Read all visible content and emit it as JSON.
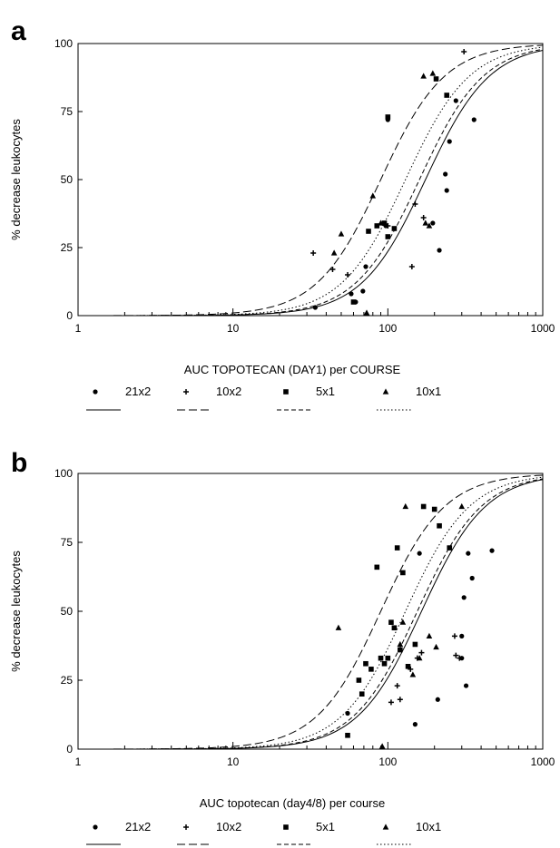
{
  "chart_data": [
    {
      "type": "scatter",
      "panel_label": "a",
      "xlabel": "AUC TOPOTECAN (DAY1) per COURSE",
      "ylabel": "% decrease leukocytes",
      "x_scale": "log",
      "xlim": [
        1,
        1000
      ],
      "ylim": [
        0,
        100
      ],
      "x_ticks": [
        "1",
        "10",
        "100",
        "1000"
      ],
      "y_ticks": [
        "0",
        "25",
        "50",
        "75",
        "100"
      ],
      "grid": false,
      "legend_position": "bottom",
      "series": [
        {
          "name": "21x2",
          "marker": "circle",
          "line_style": "solid",
          "ec50": 175,
          "points": [
            [
              34,
              3
            ],
            [
              58,
              8
            ],
            [
              62,
              5
            ],
            [
              69,
              9
            ],
            [
              72,
              18
            ],
            [
              97,
              33
            ],
            [
              100,
              72
            ],
            [
              195,
              34
            ],
            [
              215,
              24
            ],
            [
              235,
              52
            ],
            [
              240,
              46
            ],
            [
              250,
              64
            ],
            [
              275,
              79
            ],
            [
              360,
              72
            ]
          ]
        },
        {
          "name": "10x2",
          "marker": "plus",
          "line_style": "long-dash",
          "ec50": 90,
          "points": [
            [
              33,
              23
            ],
            [
              44,
              17
            ],
            [
              55,
              15
            ],
            [
              100,
              33
            ],
            [
              143,
              18
            ],
            [
              150,
              41
            ],
            [
              170,
              36
            ],
            [
              310,
              97
            ]
          ]
        },
        {
          "name": "5x1",
          "marker": "square",
          "line_style": "short-dash",
          "ec50": 160,
          "points": [
            [
              60,
              5
            ],
            [
              75,
              31
            ],
            [
              85,
              33
            ],
            [
              95,
              34
            ],
            [
              100,
              73
            ],
            [
              100,
              29
            ],
            [
              205,
              87
            ],
            [
              240,
              81
            ],
            [
              110,
              32
            ]
          ]
        },
        {
          "name": "10x1",
          "marker": "triangle",
          "line_style": "dotted",
          "ec50": 130,
          "points": [
            [
              45,
              23
            ],
            [
              50,
              30
            ],
            [
              73,
              1
            ],
            [
              80,
              44
            ],
            [
              90,
              34
            ],
            [
              170,
              88
            ],
            [
              195,
              89
            ],
            [
              185,
              33
            ],
            [
              175,
              34
            ]
          ]
        }
      ],
      "hill_slope": 2.1
    },
    {
      "type": "scatter",
      "panel_label": "b",
      "xlabel": "AUC topotecan (day4/8) per course",
      "ylabel": "% decrease leukocytes",
      "x_scale": "log",
      "xlim": [
        1,
        1000
      ],
      "ylim": [
        0,
        100
      ],
      "x_ticks": [
        "1",
        "10",
        "100",
        "1000"
      ],
      "y_ticks": [
        "0",
        "25",
        "50",
        "75",
        "100"
      ],
      "grid": false,
      "legend_position": "bottom",
      "series": [
        {
          "name": "21x2",
          "marker": "circle",
          "line_style": "solid",
          "ec50": 165,
          "points": [
            [
              55,
              13
            ],
            [
              150,
              9
            ],
            [
              160,
              71
            ],
            [
              210,
              18
            ],
            [
              300,
              41
            ],
            [
              300,
              33
            ],
            [
              310,
              55
            ],
            [
              320,
              23
            ],
            [
              330,
              71
            ],
            [
              350,
              62
            ],
            [
              470,
              72
            ]
          ]
        },
        {
          "name": "10x2",
          "marker": "plus",
          "line_style": "long-dash",
          "ec50": 90,
          "points": [
            [
              105,
              17
            ],
            [
              115,
              23
            ],
            [
              120,
              18
            ],
            [
              140,
              29
            ],
            [
              155,
              33
            ],
            [
              165,
              35
            ],
            [
              270,
              41
            ],
            [
              275,
              34
            ],
            [
              290,
              33
            ]
          ]
        },
        {
          "name": "5x1",
          "marker": "square",
          "line_style": "short-dash",
          "ec50": 155,
          "points": [
            [
              55,
              5
            ],
            [
              65,
              25
            ],
            [
              68,
              20
            ],
            [
              72,
              31
            ],
            [
              78,
              29
            ],
            [
              85,
              66
            ],
            [
              90,
              33
            ],
            [
              95,
              31
            ],
            [
              100,
              33
            ],
            [
              105,
              46
            ],
            [
              110,
              44
            ],
            [
              115,
              73
            ],
            [
              120,
              36
            ],
            [
              125,
              64
            ],
            [
              135,
              30
            ],
            [
              150,
              38
            ],
            [
              170,
              88
            ],
            [
              200,
              87
            ],
            [
              215,
              81
            ],
            [
              250,
              73
            ]
          ]
        },
        {
          "name": "10x1",
          "marker": "triangle",
          "line_style": "dotted",
          "ec50": 130,
          "points": [
            [
              48,
              44
            ],
            [
              92,
              1
            ],
            [
              120,
              38
            ],
            [
              125,
              46
            ],
            [
              130,
              88
            ],
            [
              145,
              27
            ],
            [
              160,
              33
            ],
            [
              185,
              41
            ],
            [
              205,
              37
            ],
            [
              300,
              88
            ]
          ]
        }
      ],
      "hill_slope": 2.1
    }
  ]
}
